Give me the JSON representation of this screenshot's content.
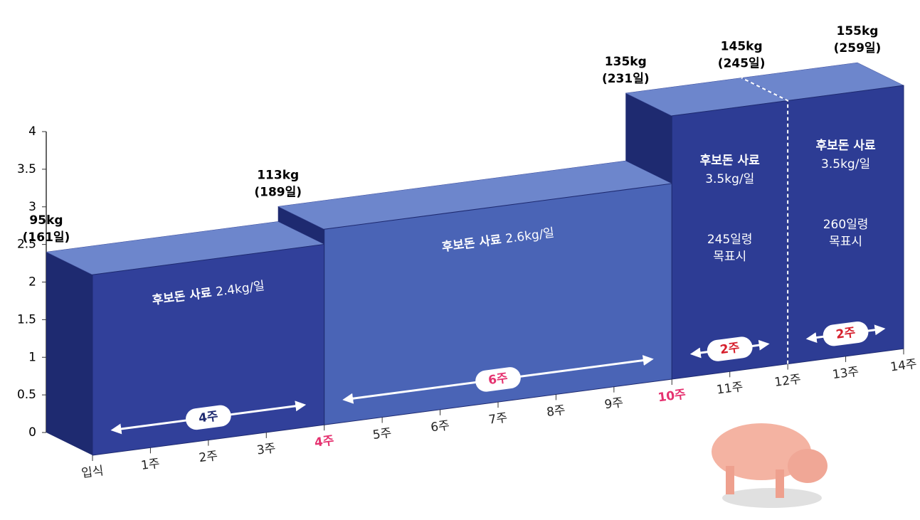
{
  "chart_data": {
    "type": "block",
    "ylim": [
      0,
      4
    ],
    "yticks": [
      0,
      0.5,
      1,
      1.5,
      2,
      2.5,
      3,
      3.5,
      4
    ],
    "xlim": [
      0,
      14
    ],
    "xticks": [
      {
        "value": 0,
        "label": "입식"
      },
      {
        "value": 1,
        "label": "1주"
      },
      {
        "value": 2,
        "label": "2주"
      },
      {
        "value": 3,
        "label": "3주"
      },
      {
        "value": 4,
        "label": "4주"
      },
      {
        "value": 5,
        "label": "5주"
      },
      {
        "value": 6,
        "label": "6주"
      },
      {
        "value": 7,
        "label": "7주"
      },
      {
        "value": 8,
        "label": "8주"
      },
      {
        "value": 9,
        "label": "9주"
      },
      {
        "value": 10,
        "label": "10주"
      },
      {
        "value": 11,
        "label": "11주"
      },
      {
        "value": 12,
        "label": "12주"
      },
      {
        "value": 13,
        "label": "13주"
      },
      {
        "value": 14,
        "label": "14주"
      }
    ],
    "highlight_color": "#e5316f",
    "highlighted_xticks": [
      4,
      10
    ],
    "blocks": [
      {
        "x_start": 0,
        "x_end": 4,
        "feed": "후보돈 사료",
        "value": 2.4,
        "value_label": "2.4kg/일",
        "duration": "4주",
        "color": "#31409a"
      },
      {
        "x_start": 4,
        "x_end": 10,
        "feed": "후보돈 사료",
        "value": 2.6,
        "value_label": "2.6kg/일",
        "duration": "6주",
        "color": "#4a64b6"
      },
      {
        "x_start": 10,
        "x_end": 12,
        "feed": "후보돈 사료",
        "value": 3.5,
        "value_label": "3.5kg/일",
        "note": [
          "245일령",
          "목표시"
        ],
        "duration": "2주",
        "color": "#2d3c94"
      },
      {
        "x_start": 12,
        "x_end": 14,
        "feed": "후보돈 사료",
        "value": 3.5,
        "value_label": "3.5kg/일",
        "note": [
          "260일령",
          "목표시"
        ],
        "duration": "2주",
        "color": "#2d3c94"
      }
    ],
    "weight_labels": [
      {
        "x": 0,
        "weight": "95kg",
        "age": "(161일)"
      },
      {
        "x": 4,
        "weight": "113kg",
        "age": "(189일)"
      },
      {
        "x": 10,
        "weight": "135kg",
        "age": "(231일)"
      },
      {
        "x": 12,
        "weight": "145kg",
        "age": "(245일)"
      },
      {
        "x": 14,
        "weight": "155kg",
        "age": "(259일)"
      }
    ]
  }
}
